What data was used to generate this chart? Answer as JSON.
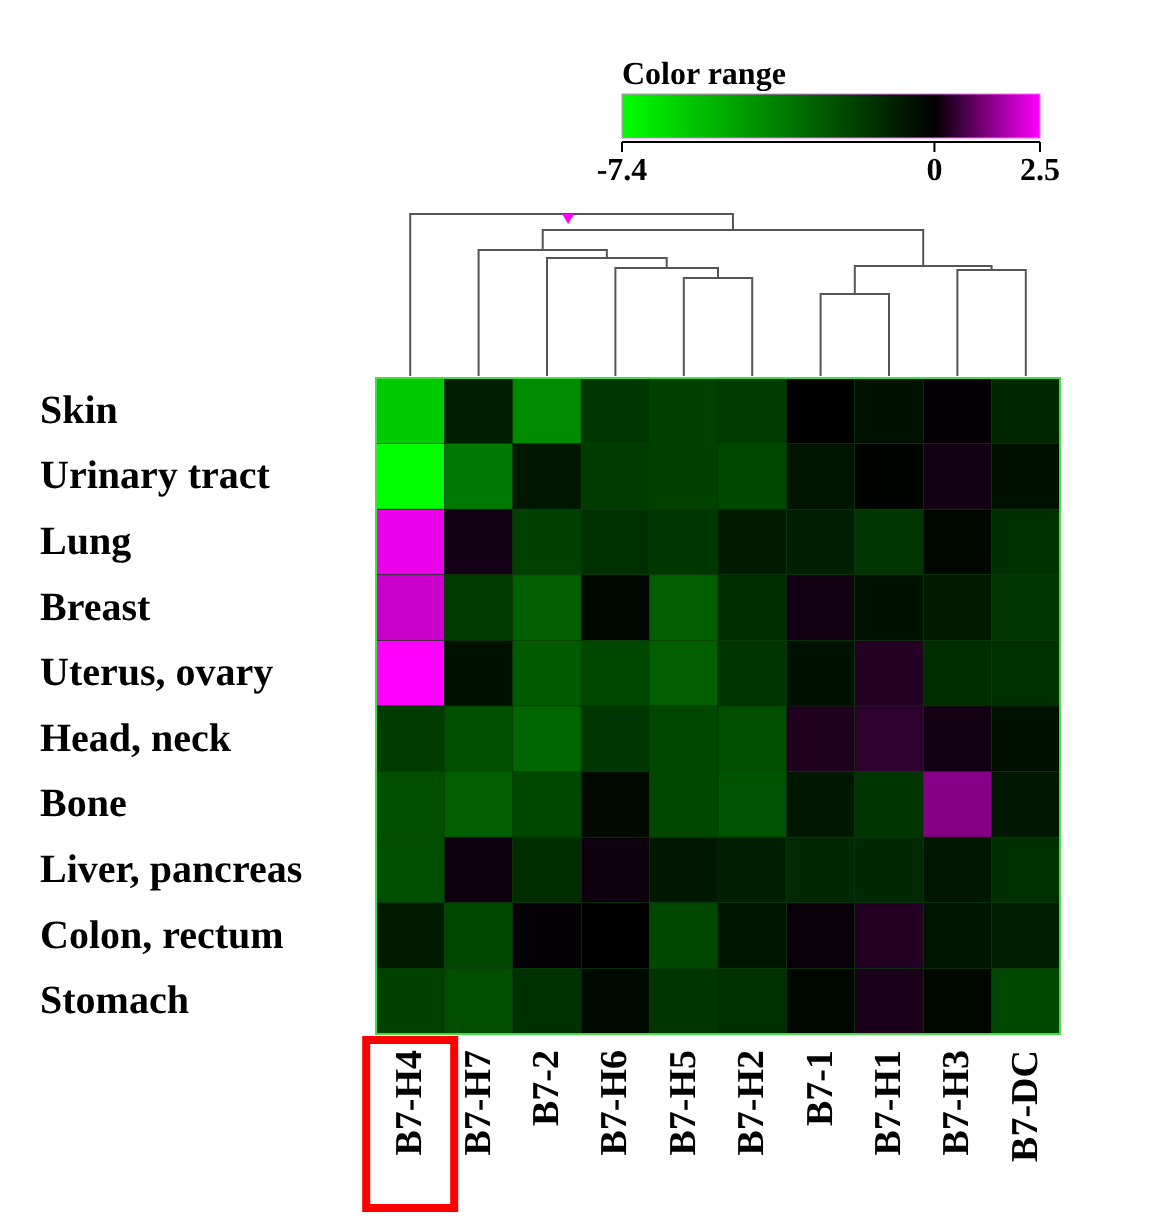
{
  "chart_data": {
    "type": "heatmap",
    "legend_title": "Color range",
    "categories": [
      "B7-H4",
      "B7-H7",
      "B7-2",
      "B7-H6",
      "B7-H5",
      "B7-H2",
      "B7-1",
      "B7-H1",
      "B7-H3",
      "B7-DC"
    ],
    "y_categories": [
      "Skin",
      "Urinary tract",
      "Lung",
      "Breast",
      "Uterus, ovary",
      "Head, neck",
      "Bone",
      "Liver, pancreas",
      "Colon, rectum",
      "Stomach"
    ],
    "cells": [
      [
        -5.9,
        -0.9,
        -4.0,
        -1.6,
        -1.9,
        -1.7,
        0,
        -0.5,
        0.05,
        -1.2
      ],
      [
        -7.4,
        -3.5,
        -0.7,
        -1.7,
        -1.9,
        -2.1,
        -0.6,
        -0.1,
        0.2,
        -0.5
      ],
      [
        2.3,
        0.2,
        -1.9,
        -1.4,
        -1.6,
        -0.8,
        -0.9,
        -1.6,
        -0.2,
        -1.4
      ],
      [
        2.0,
        -1.7,
        -2.8,
        -0.2,
        -2.8,
        -1.3,
        0.2,
        -0.5,
        -0.8,
        -1.6
      ],
      [
        2.5,
        -0.5,
        -2.6,
        -2.1,
        -2.8,
        -1.5,
        -0.5,
        0.35,
        -1.3,
        -1.4
      ],
      [
        -1.7,
        -2.3,
        -3.0,
        -1.6,
        -2.1,
        -2.3,
        0.3,
        0.45,
        0.2,
        -0.5
      ],
      [
        -2.3,
        -2.8,
        -2.1,
        -0.3,
        -2.1,
        -2.4,
        -0.7,
        -1.5,
        1.3,
        -0.7
      ],
      [
        -2.3,
        0.15,
        -1.3,
        0.15,
        -0.7,
        -0.9,
        -1.2,
        -1.2,
        -0.7,
        -1.4
      ],
      [
        -0.8,
        -2.1,
        0.05,
        0,
        -2.1,
        -0.6,
        0.1,
        0.35,
        -0.6,
        -0.9
      ],
      [
        -1.9,
        -2.3,
        -1.4,
        -0.3,
        -1.5,
        -1.4,
        -0.2,
        0.25,
        -0.2,
        -2.1
      ]
    ],
    "clim": [
      -7.4,
      2.5
    ],
    "cticks": [
      -7.4,
      0,
      2.5
    ]
  }
}
